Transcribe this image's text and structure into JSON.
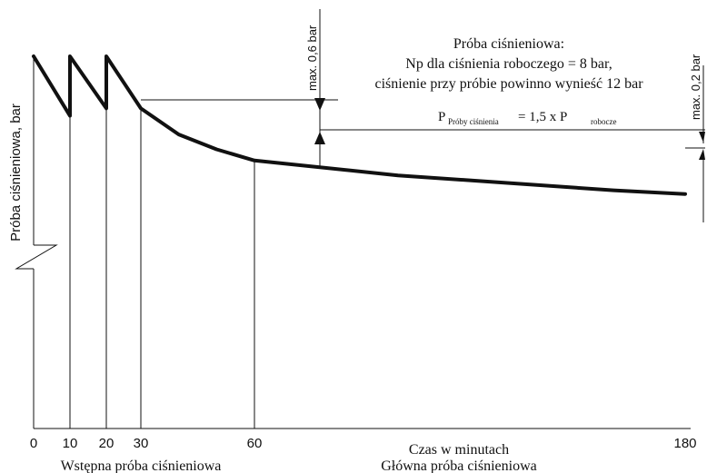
{
  "chart_data": {
    "type": "line",
    "title": "Próba ciśnieniowa:",
    "subtitle_lines": [
      "Np dla ciśnienia roboczego = 8 bar,",
      "ciśnienie przy próbie powinno wynieść 12 bar"
    ],
    "formula": {
      "lhs": "P",
      "lhs_sub": "Próby ciśnienia",
      "mid": "= 1,5 x P",
      "rhs_sub": "robocze"
    },
    "xlabel": "Czas w minutach",
    "ylabel": "Próba ciśnieniowa, bar",
    "x_ticks": [
      0,
      10,
      20,
      30,
      60,
      180
    ],
    "x_tick_labels": [
      "0",
      "10",
      "20",
      "30",
      "60",
      "180"
    ],
    "xlim": [
      0,
      180
    ],
    "y_scale": "relative (no values printed)",
    "y_axis_break": true,
    "phases": [
      {
        "label": "Wstępna próba ciśnieniowa",
        "from": 0,
        "to": 30
      },
      {
        "label": "Główna próba ciśnieniowa",
        "from": 30,
        "to": 180
      }
    ],
    "annotations": [
      {
        "text": "max. 0,6 bar",
        "at_x": 70
      },
      {
        "text": "max. 0,2 bar",
        "at_x": 180
      }
    ],
    "series": [
      {
        "values_note": "pressure level, relative units (top of chart = 100, x-axis = 0)",
        "points": [
          [
            0,
            100
          ],
          [
            10,
            84
          ],
          [
            10,
            100
          ],
          [
            20,
            86
          ],
          [
            20,
            100
          ],
          [
            25,
            93
          ],
          [
            30,
            86
          ],
          [
            40,
            79
          ],
          [
            50,
            75
          ],
          [
            60,
            72
          ],
          [
            70,
            71
          ],
          [
            100,
            68
          ],
          [
            130,
            66
          ],
          [
            160,
            64
          ],
          [
            180,
            63
          ]
        ]
      }
    ],
    "grid": false
  }
}
